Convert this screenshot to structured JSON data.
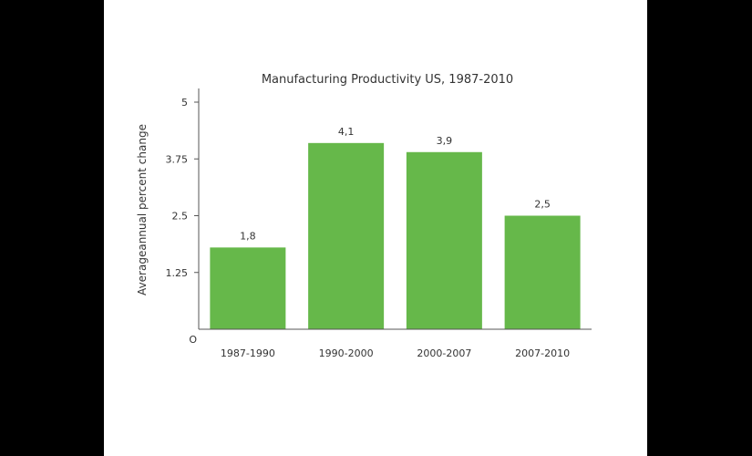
{
  "chart_data": {
    "type": "bar",
    "title": "Manufacturing Productivity US, 1987-2010",
    "xlabel": "",
    "ylabel": "Averageannual percent change",
    "categories": [
      "1987-1990",
      "1990-2000",
      "2000-2007",
      "2007-2010"
    ],
    "values": [
      1.8,
      4.1,
      3.9,
      2.5
    ],
    "value_labels": [
      "1,8",
      "4,1",
      "3,9",
      "2,5"
    ],
    "ylim": [
      0,
      5
    ],
    "yticks": [
      0,
      1.25,
      2.5,
      3.75,
      5
    ],
    "ytick_labels": [
      "O",
      "1.25",
      "2.5",
      "3.75",
      "5"
    ],
    "grid": false,
    "bar_color": "#66b84a"
  }
}
